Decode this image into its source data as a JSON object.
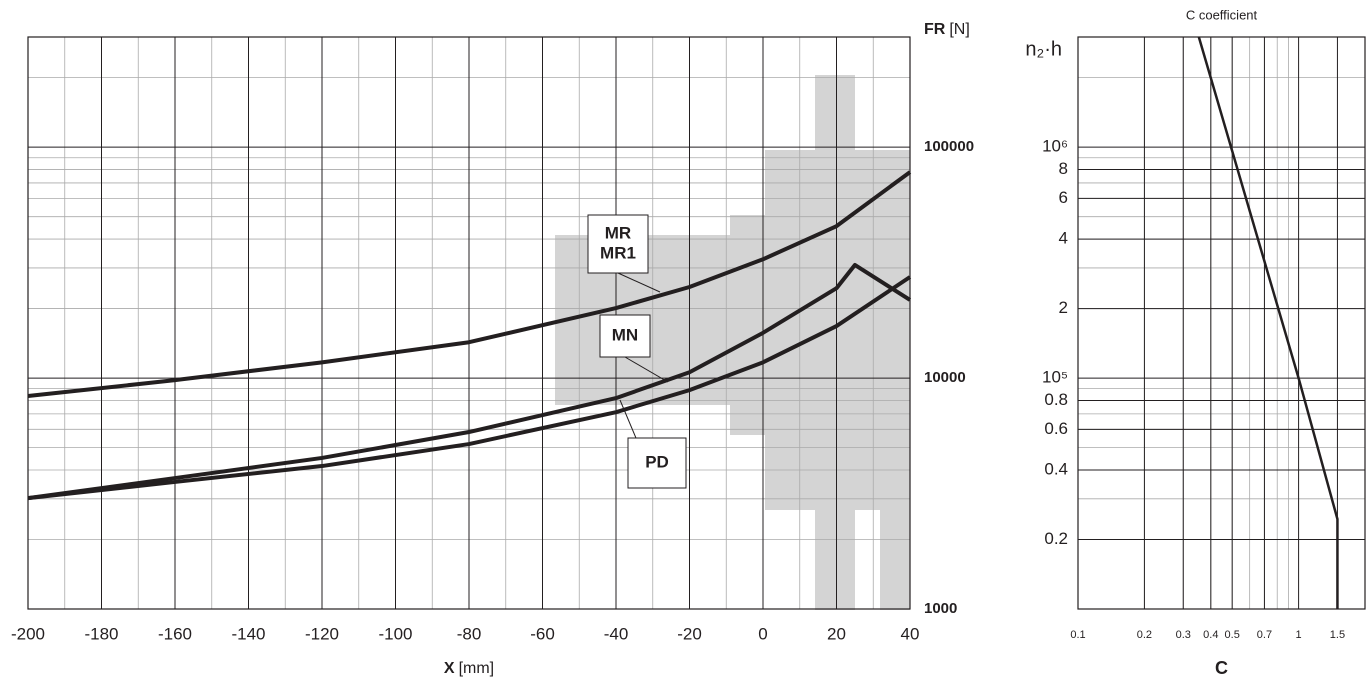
{
  "chart_data": [
    {
      "type": "line",
      "y_label": "FR",
      "y_unit": "[N]",
      "x_label": "X",
      "x_unit": "[mm]",
      "xlim": [
        -200,
        40
      ],
      "xticks": [
        -200,
        -180,
        -160,
        -140,
        -120,
        -100,
        -80,
        -60,
        -40,
        -20,
        0,
        20,
        40
      ],
      "ylim": [
        1000,
        300000
      ],
      "yticks": [
        1000,
        10000,
        100000
      ],
      "y_log": true,
      "grid": true,
      "minor_grid": true,
      "x": [
        -200,
        -160,
        -120,
        -80,
        -40,
        -20,
        0,
        20,
        25,
        40
      ],
      "series": [
        {
          "label_lines": [
            "MR",
            "MR1"
          ],
          "color": "#231f20",
          "values": [
            8360,
            9800,
            11700,
            14300,
            20100,
            24800,
            32700,
            45500,
            null,
            78000
          ]
        },
        {
          "label_lines": [
            "MN"
          ],
          "color": "#231f20",
          "values": [
            3020,
            3690,
            4510,
            5840,
            8190,
            10600,
            15700,
            24500,
            30900,
            21800
          ]
        },
        {
          "label_lines": [
            "PD"
          ],
          "color": "#231f20",
          "values": [
            3020,
            3550,
            4160,
            5180,
            7120,
            8870,
            11700,
            16800,
            null,
            27400
          ]
        }
      ]
    },
    {
      "type": "line",
      "title": "C coefficient",
      "y_label": "n₂·h",
      "x_label": "C",
      "xlim": [
        0.1,
        2
      ],
      "xticks": [
        0.1,
        0.2,
        0.3,
        0.4,
        0.5,
        0.7,
        1,
        1.5
      ],
      "x_log": true,
      "ylim": [
        10000,
        3000000
      ],
      "y_log": true,
      "grid": true,
      "minor_grid": true,
      "yticks": [
        {
          "value": 20000,
          "label": "0.2"
        },
        {
          "value": 40000,
          "label": "0.4"
        },
        {
          "value": 60000,
          "label": "0.6"
        },
        {
          "value": 80000,
          "label": "0.8"
        },
        {
          "value": 100000,
          "label": "10⁵"
        },
        {
          "value": 200000,
          "label": "2"
        },
        {
          "value": 400000,
          "label": "4"
        },
        {
          "value": 600000,
          "label": "6"
        },
        {
          "value": 800000,
          "label": "8"
        },
        {
          "value": 1000000,
          "label": "10⁶"
        }
      ],
      "x": [
        0.353,
        1,
        1.5,
        1.5
      ],
      "series": [
        {
          "color": "#231f20",
          "values": [
            3000000,
            100000,
            24500,
            10000
          ]
        }
      ]
    }
  ]
}
